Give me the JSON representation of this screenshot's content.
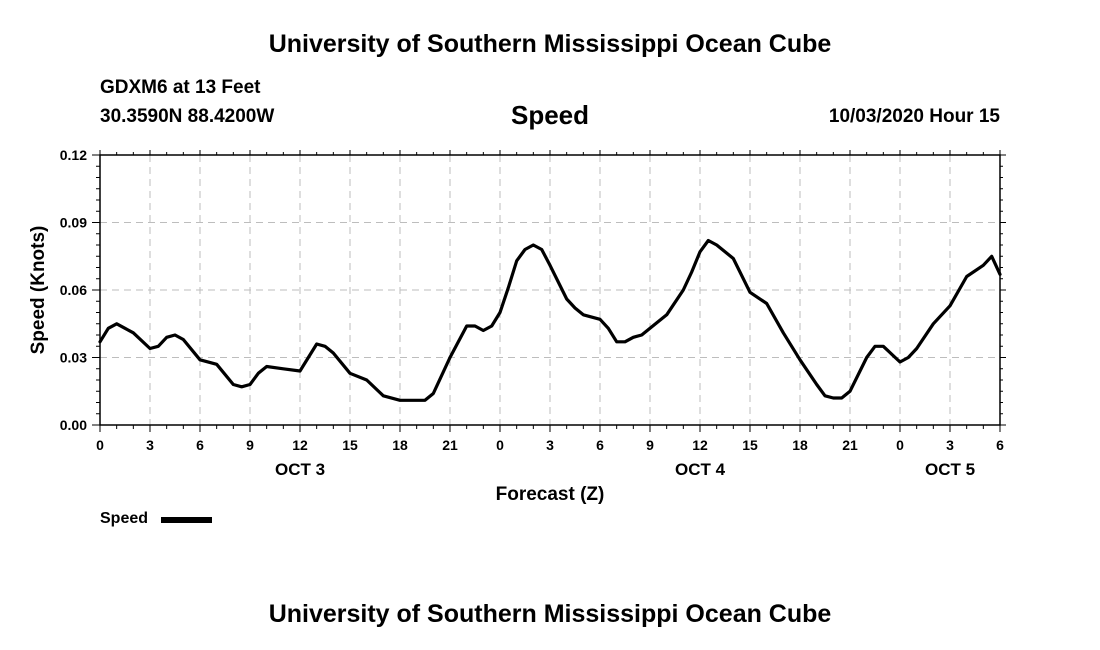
{
  "header": {
    "main_title": "University of Southern Mississippi Ocean Cube",
    "station": "GDXM6 at 13 Feet",
    "coords": "30.3590N 88.4200W",
    "datetime": "10/03/2020 Hour 15"
  },
  "footer": {
    "title": "University of Southern Mississippi Ocean Cube"
  },
  "chart_data": {
    "type": "line",
    "title": "Speed",
    "xlabel": "Forecast (Z)",
    "ylabel": "Speed (Knots)",
    "xlim": [
      0,
      54
    ],
    "ylim": [
      0,
      0.12
    ],
    "grid": true,
    "y_ticks": [
      "0.00",
      "0.03",
      "0.06",
      "0.09",
      "0.12"
    ],
    "x_tick_labels": [
      "0",
      "3",
      "6",
      "9",
      "12",
      "15",
      "18",
      "21",
      "0",
      "3",
      "6",
      "9",
      "12",
      "15",
      "18",
      "21",
      "0",
      "3",
      "6"
    ],
    "date_labels": [
      {
        "label": "OCT 3",
        "x": 12
      },
      {
        "label": "OCT 4",
        "x": 36
      },
      {
        "label": "OCT 5",
        "x": 51
      }
    ],
    "legend": {
      "position": "bottom-left",
      "label": "Speed"
    },
    "series": [
      {
        "name": "Speed",
        "x": [
          0,
          0.5,
          1,
          1.5,
          2,
          3,
          3.5,
          4,
          4.5,
          5,
          6,
          7,
          8,
          8.5,
          9,
          9.5,
          10,
          11,
          12,
          13,
          13.5,
          14,
          15,
          16,
          17,
          18,
          19,
          19.5,
          20,
          21,
          22,
          22.5,
          23,
          23.5,
          24,
          24.5,
          25,
          25.5,
          26,
          26.5,
          27,
          28,
          28.5,
          29,
          30,
          30.5,
          31,
          31.5,
          32,
          32.5,
          33,
          34,
          35,
          35.5,
          36,
          36.5,
          37,
          38,
          39,
          40,
          41,
          42,
          43,
          43.5,
          44,
          44.5,
          45,
          46,
          46.5,
          47,
          48,
          48.5,
          49,
          50,
          51,
          52,
          53,
          53.5,
          54
        ],
        "values": [
          0.037,
          0.043,
          0.045,
          0.043,
          0.041,
          0.034,
          0.035,
          0.039,
          0.04,
          0.038,
          0.029,
          0.027,
          0.018,
          0.017,
          0.018,
          0.023,
          0.026,
          0.025,
          0.024,
          0.036,
          0.035,
          0.032,
          0.023,
          0.02,
          0.013,
          0.011,
          0.011,
          0.011,
          0.014,
          0.03,
          0.044,
          0.044,
          0.042,
          0.044,
          0.05,
          0.061,
          0.073,
          0.078,
          0.08,
          0.078,
          0.071,
          0.056,
          0.052,
          0.049,
          0.047,
          0.043,
          0.037,
          0.037,
          0.039,
          0.04,
          0.043,
          0.049,
          0.06,
          0.068,
          0.077,
          0.082,
          0.08,
          0.074,
          0.059,
          0.054,
          0.041,
          0.029,
          0.018,
          0.013,
          0.012,
          0.012,
          0.015,
          0.03,
          0.035,
          0.035,
          0.028,
          0.03,
          0.034,
          0.045,
          0.053,
          0.066,
          0.071,
          0.075,
          0.067
        ]
      }
    ]
  }
}
